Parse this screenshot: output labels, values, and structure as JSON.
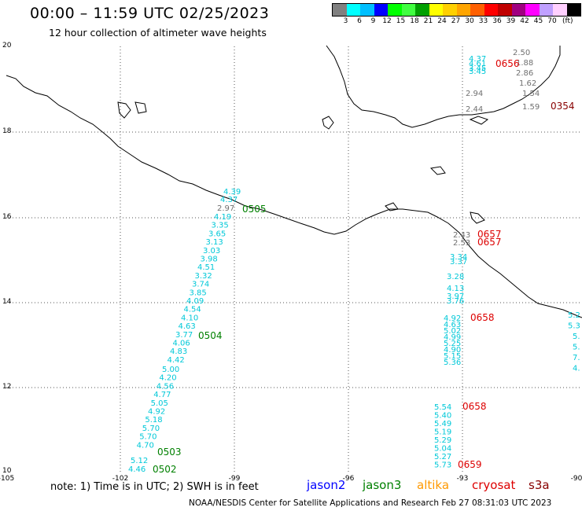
{
  "header": {
    "title": "00:00 – 11:59 UTC 02/25/2023",
    "subtitle": "12 hour collection of altimeter wave heights"
  },
  "legend": {
    "colors": [
      "#808080",
      "#00ffff",
      "#00bfff",
      "#0000ff",
      "#00ff00",
      "#40ff40",
      "#00a000",
      "#ffff00",
      "#ffd000",
      "#ffa500",
      "#ff6000",
      "#ff0000",
      "#c00000",
      "#a00080",
      "#ff00ff",
      "#c0a0ff",
      "#ffd0ff",
      "#000000"
    ],
    "labels": [
      "3",
      "6",
      "9",
      "12",
      "15",
      "18",
      "21",
      "24",
      "27",
      "30",
      "33",
      "36",
      "39",
      "42",
      "45",
      "70"
    ],
    "unit": "(ft)"
  },
  "axes": {
    "lat_labels": [
      "20",
      "18",
      "16",
      "14",
      "12",
      "10"
    ],
    "lon_labels": [
      "-105",
      "-102",
      "-99",
      "-96",
      "-93",
      "-90"
    ]
  },
  "tracks": [
    {
      "label": "0505",
      "color": "#008000",
      "values": [
        "4.39",
        "4.37",
        "2.97"
      ]
    },
    {
      "label": "0504",
      "color": "#008000",
      "values": [
        "4.19",
        "3.35",
        "3.65",
        "3.13",
        "3.03",
        "3.98",
        "4.51",
        "3.32",
        "3.74",
        "3.85",
        "4.09",
        "4.54",
        "4.10",
        "4.63",
        "3.77",
        "4.06",
        "4.83",
        "4.42"
      ]
    },
    {
      "label": "0503",
      "color": "#008000",
      "values": [
        "5.00",
        "4.20",
        "4.56",
        "4.77",
        "5.05",
        "4.92",
        "5.18",
        "5.70",
        "5.70",
        "4.70"
      ]
    },
    {
      "label": "0502",
      "color": "#008000",
      "values": [
        "5.12",
        "4.46"
      ]
    },
    {
      "label": "0656",
      "color": "#dd0000",
      "values": [
        "4.37",
        "4.61",
        "3.45",
        "3.45",
        "2.50",
        "1.88",
        "2.86",
        "1.62",
        "2.94",
        "2.44",
        "1.54",
        "1.59"
      ]
    },
    {
      "label": "0354",
      "color": "#880000",
      "values": []
    },
    {
      "label": "0657",
      "color": "#dd0000",
      "values": [
        "2.43",
        "2.53",
        "3.34",
        "3.37",
        "3.28",
        "4.13",
        "3.97",
        "3.76"
      ]
    },
    {
      "label": "0657",
      "color": "#dd0000",
      "values": []
    },
    {
      "label": "0658",
      "color": "#dd0000",
      "values": [
        "4.92",
        "4.63",
        "5.02",
        "4.99",
        "5.25",
        "4.90",
        "5.15",
        "5.36"
      ]
    },
    {
      "label": "0658",
      "color": "#dd0000",
      "values": [
        "5.54",
        "5.40",
        "5.49",
        "5.19",
        "5.29",
        "5.04",
        "5.27",
        "5.73"
      ]
    },
    {
      "label": "0659",
      "color": "#dd0000",
      "values": []
    }
  ],
  "right_edge_values": [
    "5.2",
    "5.3",
    "5.",
    "5.",
    "7.",
    "4."
  ],
  "footer": {
    "note": "note: 1) Time is in UTC; 2) SWH is in feet",
    "satellites": [
      {
        "name": "jason2",
        "color": "#0000ff"
      },
      {
        "name": "jason3",
        "color": "#008000"
      },
      {
        "name": "altika",
        "color": "#ff9900"
      },
      {
        "name": "cryosat",
        "color": "#dd0000"
      },
      {
        "name": "s3a",
        "color": "#880000"
      }
    ],
    "credit": "NOAA/NESDIS Center for Satellite Applications and Research    Feb 27 08:31:03 UTC 2023"
  }
}
